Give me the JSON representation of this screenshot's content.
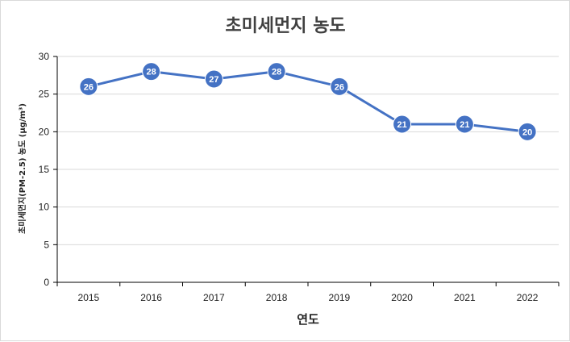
{
  "chart_data": {
    "type": "line",
    "title": "초미세먼지 농도",
    "xlabel": "연도",
    "ylabel": "초미세먼지(PM-2.5) 농도 (μg/m³)",
    "categories": [
      "2015",
      "2016",
      "2017",
      "2018",
      "2019",
      "2020",
      "2021",
      "2022"
    ],
    "series": [
      {
        "values": [
          26,
          28,
          27,
          28,
          26,
          21,
          21,
          20
        ]
      }
    ],
    "ylim": [
      0,
      30
    ],
    "yticks": [
      0,
      5,
      10,
      15,
      20,
      25,
      30
    ],
    "grid": true,
    "legend": "none",
    "data_labels": true,
    "colors": {
      "line": "#4472C4",
      "marker": "#4472C4",
      "grid": "#d9d9d9",
      "axis": "#000000"
    }
  }
}
